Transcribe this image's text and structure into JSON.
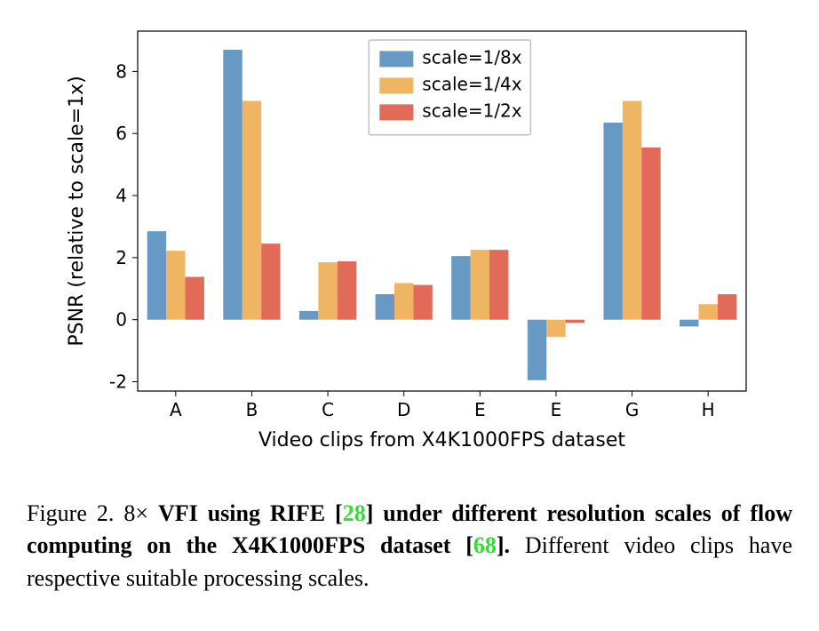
{
  "chart": {
    "type": "bar-grouped",
    "categories": [
      "A",
      "B",
      "C",
      "D",
      "E",
      "E",
      "G",
      "H"
    ],
    "series": [
      {
        "name": "scale=1/8x",
        "color": "#6699c4",
        "values": [
          2.85,
          8.7,
          0.28,
          0.82,
          2.05,
          -1.95,
          6.35,
          -0.22
        ]
      },
      {
        "name": "scale=1/4x",
        "color": "#f0b562",
        "values": [
          2.22,
          7.05,
          1.85,
          1.18,
          2.25,
          -0.55,
          7.05,
          0.5
        ]
      },
      {
        "name": "scale=1/2x",
        "color": "#e26a58",
        "values": [
          1.38,
          2.45,
          1.88,
          1.12,
          2.25,
          -0.1,
          5.55,
          0.82
        ]
      }
    ],
    "ylim": [
      -2.3,
      9.3
    ],
    "yticks": [
      -2,
      0,
      2,
      4,
      6,
      8
    ],
    "xlabel": "Video clips from X4K1000FPS dataset",
    "ylabel": "PSNR (relative to scale=1x)",
    "label_fontsize": 22,
    "tick_fontsize": 20,
    "legend_fontsize": 20,
    "bar_width": 0.25,
    "group_gap": 0.25,
    "plot_bg": "#ffffff",
    "spine_color": "#000000",
    "legend": {
      "box_stroke": "#bfbfbf",
      "box_fill": "#ffffff"
    }
  },
  "caption": {
    "figure_label": "Figure 2.",
    "pre_bold": "8×",
    "bold_part1": "VFI using RIFE [",
    "ref1": "28",
    "bold_part2": "] under different resolution scales of flow computing on the X4K1000FPS dataset [",
    "ref2": "68",
    "bold_part3": "].",
    "tail": " Different video clips have respective suitable processing scales."
  }
}
